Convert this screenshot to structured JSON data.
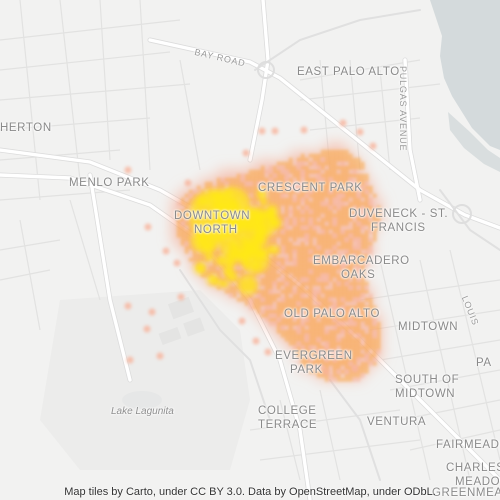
{
  "map": {
    "labels": {
      "bay_road": "BAY ROAD",
      "east_palo_alto": "EAST PALO ALTO",
      "pulgas_avenue": "PULGAS AVENUE",
      "atherton": "HERTON",
      "menlo_park": "MENLO PARK",
      "crescent_park": "CRESCENT PARK",
      "downtown_north_1": "DOWNTOWN",
      "downtown_north_2": "NORTH",
      "duveneck_1": "DUVENECK - ST.",
      "duveneck_2": "FRANCIS",
      "embarcadero_1": "EMBARCADERO",
      "embarcadero_2": "OAKS",
      "old_palo_alto": "OLD PALO ALTO",
      "midtown": "MIDTOWN",
      "louis": "LOUIS",
      "evergreen_1": "EVERGREEN",
      "evergreen_2": "PARK",
      "south_midtown_1": "SOUTH OF",
      "south_midtown_2": "MIDTOWN",
      "pa_right": "PA",
      "lake_lagunita": "Lake Lagunita",
      "college_1": "COLLEGE",
      "college_2": "TERRACE",
      "ventura": "VENTURA",
      "fairmeadow": "FAIRMEADO",
      "charleston_1": "CHARLESTON",
      "charleston_2": "MEADOWS",
      "greenmeadow": "GREENMEA"
    },
    "colors": {
      "land": "#f2f2f1",
      "water": "#d4dadc",
      "road": "#ffffff",
      "road_edge": "#dedede",
      "density_low": "#f7b39b",
      "density_mid": "#f9a847",
      "density_high": "#ffe81a"
    },
    "attribution": "Map tiles by Carto, under CC BY 3.0. Data by OpenStreetMap, under ODbL."
  }
}
